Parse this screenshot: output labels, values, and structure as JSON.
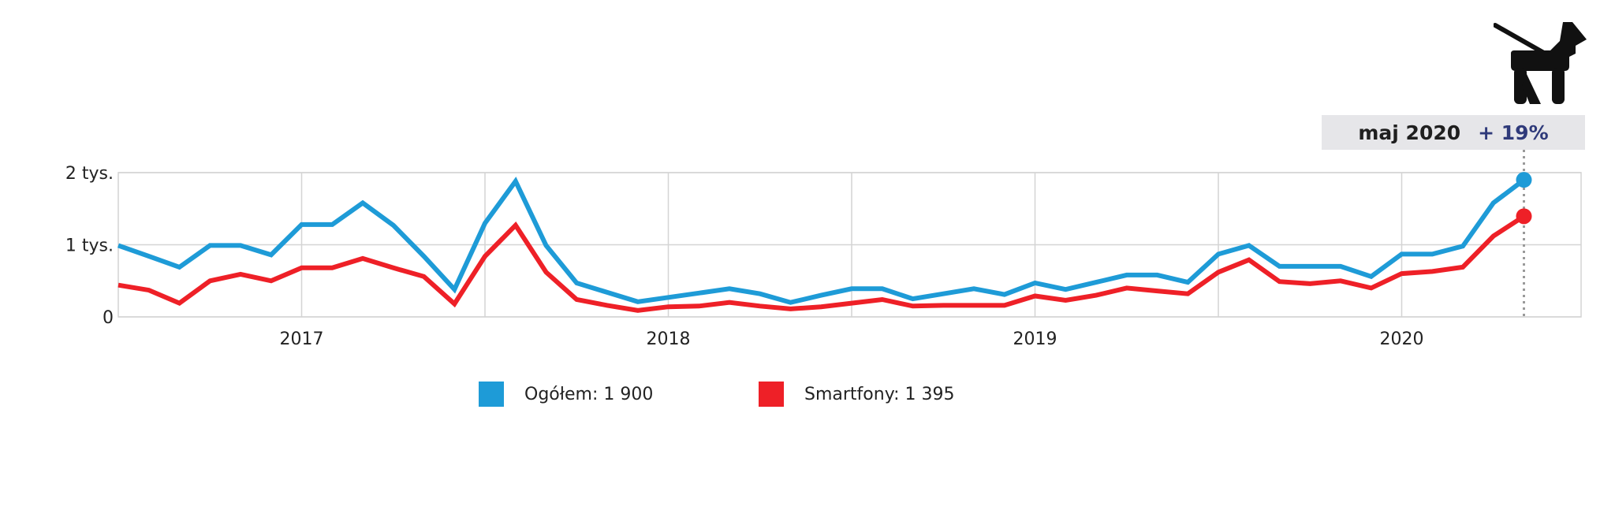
{
  "callout": {
    "date": "maj 2020",
    "change": "+ 19%"
  },
  "icon": "dog-on-leash-icon",
  "legend": [
    {
      "label": "Ogółem: 1 900",
      "color": "#1e9bd7"
    },
    {
      "label": "Smartfony: 1 395",
      "color": "#ee2027"
    }
  ],
  "chart_data": {
    "type": "line",
    "title": "",
    "xlabel": "",
    "ylabel": "",
    "ylim": [
      0,
      2000
    ],
    "y_ticks": [
      {
        "value": 0,
        "label": "0"
      },
      {
        "value": 1000,
        "label": "1 tys."
      },
      {
        "value": 2000,
        "label": "2 tys."
      }
    ],
    "x_ticks": [
      "2017",
      "2018",
      "2019",
      "2020"
    ],
    "x": [
      "2016-07",
      "2016-08",
      "2016-09",
      "2016-10",
      "2016-11",
      "2016-12",
      "2017-01",
      "2017-02",
      "2017-03",
      "2017-04",
      "2017-05",
      "2017-06",
      "2017-07",
      "2017-08",
      "2017-09",
      "2017-10",
      "2017-11",
      "2017-12",
      "2018-01",
      "2018-02",
      "2018-03",
      "2018-04",
      "2018-05",
      "2018-06",
      "2018-07",
      "2018-08",
      "2018-09",
      "2018-10",
      "2018-11",
      "2018-12",
      "2019-01",
      "2019-02",
      "2019-03",
      "2019-04",
      "2019-05",
      "2019-06",
      "2019-07",
      "2019-08",
      "2019-09",
      "2019-10",
      "2019-11",
      "2019-12",
      "2020-01",
      "2020-02",
      "2020-03",
      "2020-04",
      "2020-05"
    ],
    "grid": true,
    "series": [
      {
        "name": "Ogółem",
        "color": "#1e9bd7",
        "values": [
          990,
          840,
          690,
          990,
          990,
          860,
          1280,
          1280,
          1580,
          1270,
          840,
          380,
          1300,
          1880,
          990,
          470,
          340,
          210,
          270,
          330,
          390,
          320,
          200,
          300,
          390,
          390,
          250,
          320,
          390,
          310,
          470,
          380,
          480,
          580,
          580,
          480,
          870,
          990,
          700,
          700,
          700,
          560,
          870,
          870,
          980,
          1580,
          1900
        ]
      },
      {
        "name": "Smartfony",
        "color": "#ee2027",
        "values": [
          440,
          370,
          190,
          500,
          590,
          500,
          680,
          680,
          810,
          680,
          560,
          180,
          840,
          1270,
          620,
          240,
          160,
          90,
          140,
          150,
          200,
          150,
          110,
          140,
          190,
          240,
          150,
          160,
          160,
          160,
          290,
          230,
          300,
          400,
          360,
          320,
          620,
          790,
          490,
          460,
          500,
          400,
          600,
          630,
          690,
          1120,
          1395
        ]
      }
    ]
  }
}
